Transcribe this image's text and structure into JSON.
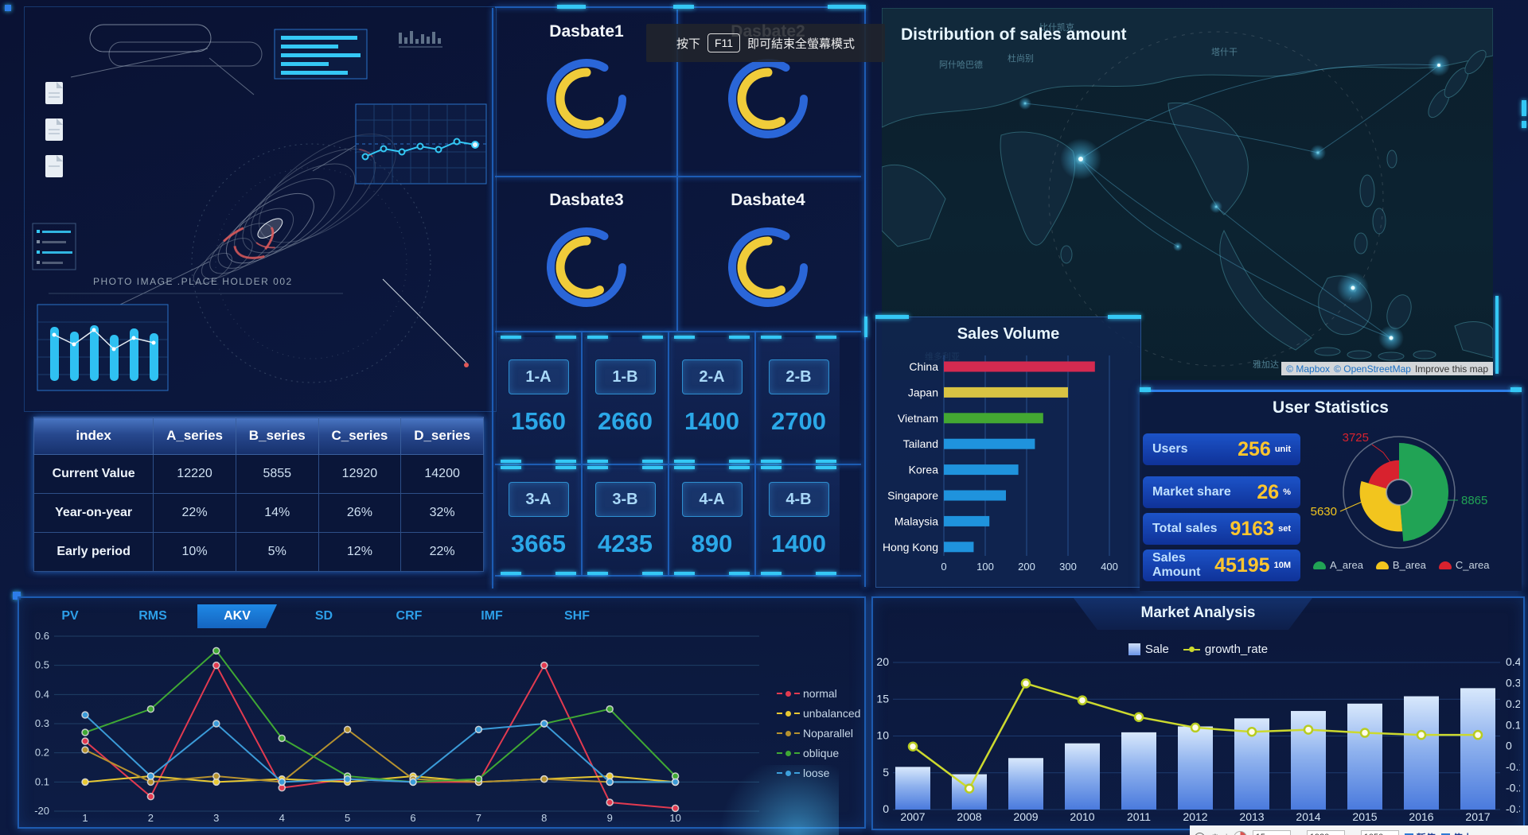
{
  "window": {
    "toast": {
      "prefix": "按下",
      "key": "F11",
      "suffix": "即可結束全螢幕模式"
    },
    "recorder": {
      "time": "15",
      "time_unit": "s",
      "width": "1920",
      "times_sign": "x",
      "height": "1050",
      "pause_label": "暂停",
      "stop_label": "停止"
    }
  },
  "tech_panel": {
    "photo_label": "PHOTO IMAGE .PLACE HOLDER 002"
  },
  "gauge_panel": {
    "titles": [
      "Dasbate1",
      "Dasbate2",
      "Dasbate3",
      "Dasbate4"
    ]
  },
  "cards": [
    {
      "label": "1-A",
      "value": "1560"
    },
    {
      "label": "1-B",
      "value": "2660"
    },
    {
      "label": "2-A",
      "value": "1400"
    },
    {
      "label": "2-B",
      "value": "2700"
    },
    {
      "label": "3-A",
      "value": "3665"
    },
    {
      "label": "3-B",
      "value": "4235"
    },
    {
      "label": "4-A",
      "value": "890"
    },
    {
      "label": "4-B",
      "value": "1400"
    }
  ],
  "table": {
    "headers": [
      "index",
      "A_series",
      "B_series",
      "C_series",
      "D_series"
    ],
    "rows": [
      {
        "label": "Current Value",
        "values": [
          "12220",
          "5855",
          "12920",
          "14200"
        ]
      },
      {
        "label": "Year-on-year",
        "values": [
          "22%",
          "14%",
          "26%",
          "32%"
        ]
      },
      {
        "label": "Early period",
        "values": [
          "10%",
          "5%",
          "12%",
          "22%"
        ]
      }
    ]
  },
  "map_panel": {
    "title": "Distribution of sales amount",
    "place_labels": [
      "比什凯克",
      "塔什干",
      "杜尚别",
      "阿什哈巴德",
      "维多利亚",
      "雅加达"
    ],
    "attribution": {
      "mapbox": "© Mapbox",
      "osm": "© OpenStreetMap",
      "improve": "Improve this map"
    }
  },
  "user_stats": {
    "title": "User Statistics",
    "stats": [
      {
        "label": "Users",
        "value": "256",
        "unit": "unit"
      },
      {
        "label": "Market share",
        "value": "26",
        "unit": "%"
      },
      {
        "label": "Total sales",
        "value": "9163",
        "unit": "set"
      },
      {
        "label": "Sales Amount",
        "value": "45195",
        "unit": "10M"
      }
    ]
  },
  "chart_data": [
    {
      "id": "sales_volume",
      "type": "bar",
      "orientation": "horizontal",
      "title": "Sales Volume",
      "categories": [
        "China",
        "Japan",
        "Vietnam",
        "Tailand",
        "Korea",
        "Singapore",
        "Malaysia",
        "Hong Kong"
      ],
      "values": [
        365,
        300,
        240,
        220,
        180,
        150,
        110,
        72
      ],
      "colors": [
        "#d42a50",
        "#d8c343",
        "#43a832",
        "#1f93dd",
        "#1f93dd",
        "#1f93dd",
        "#1f93dd",
        "#1f93dd"
      ],
      "xticks": [
        "0",
        "100",
        "200",
        "300",
        "400"
      ],
      "xlim": [
        0,
        400
      ],
      "grid": true
    },
    {
      "id": "user_pie",
      "type": "pie",
      "variant": "rose",
      "labels": [
        "A_area",
        "B_area",
        "C_area"
      ],
      "values": [
        8865,
        5630,
        3725
      ],
      "value_labels": [
        "8865",
        "5630",
        "3725"
      ],
      "colors": [
        "#21a355",
        "#f2c51e",
        "#d8222e"
      ],
      "legend_position": "bottom"
    },
    {
      "id": "multi_line",
      "type": "line",
      "x": [
        "1",
        "2",
        "3",
        "4",
        "5",
        "6",
        "7",
        "8",
        "9",
        "10"
      ],
      "yticks": [
        "0.6",
        "0.5",
        "0.4",
        "0.3",
        "0.2",
        "0.1",
        "-20"
      ],
      "ylim": [
        0,
        0.6
      ],
      "tabs": [
        "PV",
        "RMS",
        "AKV",
        "SD",
        "CRF",
        "IMF",
        "SHF"
      ],
      "active_tab": "AKV",
      "legend_position": "right",
      "series": [
        {
          "name": "normal",
          "color": "#e23a50",
          "values": [
            0.24,
            0.05,
            0.5,
            0.08,
            0.11,
            0.1,
            0.1,
            0.5,
            0.03,
            0.01
          ]
        },
        {
          "name": "unbalanced",
          "color": "#e8c832",
          "values": [
            0.1,
            0.12,
            0.1,
            0.11,
            0.1,
            0.12,
            0.1,
            0.11,
            0.12,
            0.1
          ]
        },
        {
          "name": "Noparallel",
          "color": "#b5912f",
          "values": [
            0.21,
            0.1,
            0.12,
            0.1,
            0.28,
            0.11,
            0.1,
            0.11,
            0.1,
            0.1
          ]
        },
        {
          "name": "oblique",
          "color": "#3fa834",
          "values": [
            0.27,
            0.35,
            0.55,
            0.25,
            0.12,
            0.1,
            0.11,
            0.3,
            0.35,
            0.12
          ]
        },
        {
          "name": "loose",
          "color": "#3b9bd8",
          "values": [
            0.33,
            0.12,
            0.3,
            0.1,
            0.11,
            0.1,
            0.28,
            0.3,
            0.1,
            0.1
          ]
        }
      ]
    },
    {
      "id": "market",
      "type": "bar+line",
      "title": "Market Analysis",
      "categories": [
        "2007",
        "2008",
        "2009",
        "2010",
        "2011",
        "2012",
        "2013",
        "2014",
        "2015",
        "2016",
        "2017"
      ],
      "series": [
        {
          "name": "Sale",
          "type": "bar",
          "values": [
            5.8,
            4.8,
            7.0,
            9.0,
            10.5,
            11.3,
            12.4,
            13.4,
            14.4,
            15.4,
            16.5
          ]
        },
        {
          "name": "growth_rate",
          "type": "line",
          "color": "#ccd92e",
          "values": [
            0.0,
            -0.2,
            0.3,
            0.22,
            0.14,
            0.09,
            0.07,
            0.08,
            0.065,
            0.055,
            0.055
          ]
        }
      ],
      "left_ticks": [
        "20",
        "15",
        "10",
        "5",
        "0"
      ],
      "left_lim": [
        0,
        20
      ],
      "right_ticks": [
        "0.4",
        "0.3",
        "0.2",
        "0.1",
        "0",
        "-0.1",
        "-0.2",
        "-0.3"
      ],
      "right_lim": [
        -0.3,
        0.4
      ]
    },
    {
      "id": "gauges",
      "type": "gauge",
      "titles": [
        "Dasbate1",
        "Dasbate2",
        "Dasbate3",
        "Dasbate4"
      ],
      "blue_sweep_deg": 300,
      "yellow_sweep_deg": 210
    }
  ]
}
